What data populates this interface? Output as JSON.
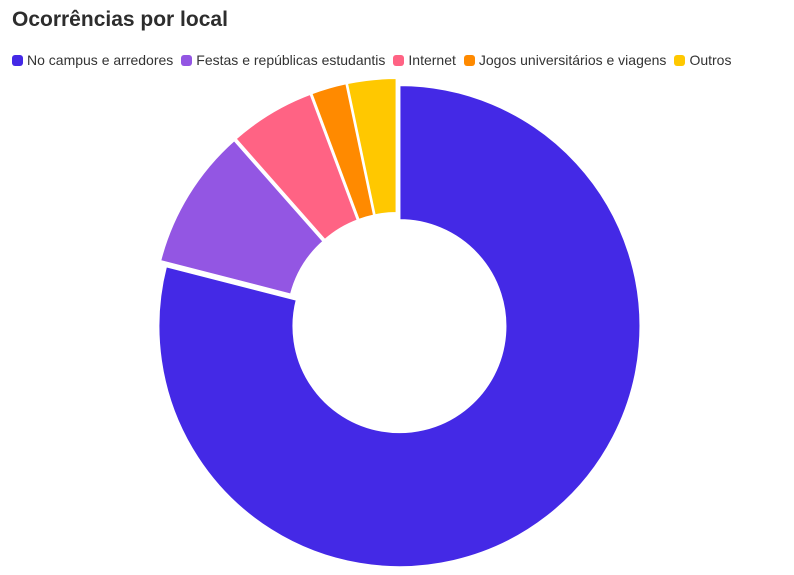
{
  "chart_data": {
    "type": "pie",
    "variant": "donut",
    "title": "Ocorrências por local",
    "categories": [
      "No campus e arredores",
      "Festas e repúblicas estudantis",
      "Internet",
      "Jogos universitários e viagens",
      "Outros"
    ],
    "values": [
      79,
      9.5,
      5.8,
      2.4,
      3.3
    ],
    "colors": [
      "#4429e6",
      "#9356e3",
      "#ff6384",
      "#ff8a00",
      "#ffc800"
    ],
    "legend_position": "top-left"
  }
}
